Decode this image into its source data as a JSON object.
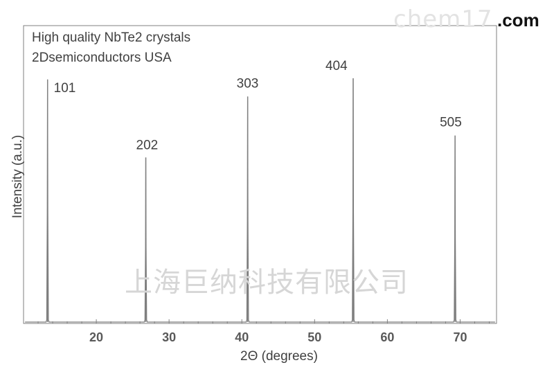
{
  "watermarks": {
    "top": "chem17",
    "top_suffix": ".com",
    "center": "上海巨纳科技有限公司"
  },
  "chart_data": {
    "type": "line",
    "title": "High quality NbTe2 crystals",
    "subtitle": "2Dsemiconductors USA",
    "xlabel": "2Θ (degrees)",
    "ylabel": "Intensity (a.u.)",
    "xlim": [
      10,
      75
    ],
    "ylim": [
      0,
      100
    ],
    "x_ticks": [
      20,
      30,
      40,
      50,
      60,
      70
    ],
    "grid": false,
    "line_color": "#7f7f7f",
    "peaks": [
      {
        "label": "101",
        "x": 13.3,
        "y": 99.5
      },
      {
        "label": "202",
        "x": 26.8,
        "y": 67.5
      },
      {
        "label": "303",
        "x": 40.8,
        "y": 92.5
      },
      {
        "label": "404",
        "x": 55.3,
        "y": 100
      },
      {
        "label": "505",
        "x": 69.3,
        "y": 76.5
      }
    ]
  }
}
